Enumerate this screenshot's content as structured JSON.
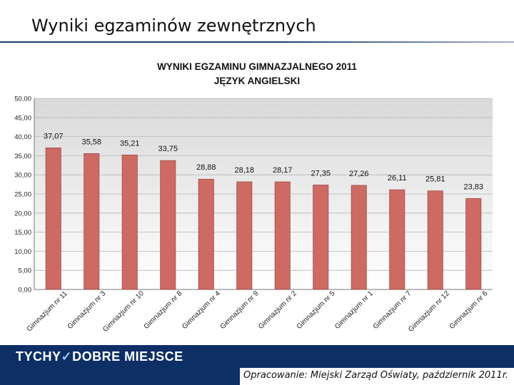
{
  "slide": {
    "title": "Wyniki egzaminów zewnętrznych",
    "brand_left": "TYCHY",
    "brand_mark": "✓",
    "brand_right": "DOBRE MIEJSCE",
    "source": "Opracowanie: Miejski Zarząd Oświaty, październik 2011r."
  },
  "colors": {
    "bar": "#cd6a63",
    "header_rule": "#1f3d6e",
    "footer": "#0d2f66",
    "plot_bg_top": "#d9d9d9",
    "plot_bg_bottom": "#ffffff"
  },
  "chart_data": {
    "type": "bar",
    "title_line1": "WYNIKI EGZAMINU GIMNAZJALNEGO 2011",
    "title_line2": "JĘZYK ANGIELSKI",
    "categories": [
      "Gimnazjum nr 11",
      "Gimnazjum nr 3",
      "Gimnazjum nr 10",
      "Gimnazjum nr 8",
      "Gimnazjum nr 4",
      "Gimnazjum nr 9",
      "Gimnazjum nr 2",
      "Gimnazjum nr 5",
      "Gimnazjum nr 1",
      "Gimnazjum nr 7",
      "Gimnazjum nr 12",
      "Gimnazjum nr 6"
    ],
    "values": [
      37.07,
      35.58,
      35.21,
      33.75,
      28.88,
      28.18,
      28.17,
      27.35,
      27.26,
      26.11,
      25.81,
      23.83
    ],
    "value_labels": [
      "37,07",
      "35,58",
      "35,21",
      "33,75",
      "28,88",
      "28,18",
      "28,17",
      "27,35",
      "27,26",
      "26,11",
      "25,81",
      "23,83"
    ],
    "ylim": [
      0,
      50
    ],
    "y_ticks": [
      "0,00",
      "5,00",
      "10,00",
      "15,00",
      "20,00",
      "25,00",
      "30,00",
      "35,00",
      "40,00",
      "45,00",
      "50,00"
    ],
    "grid": true
  }
}
